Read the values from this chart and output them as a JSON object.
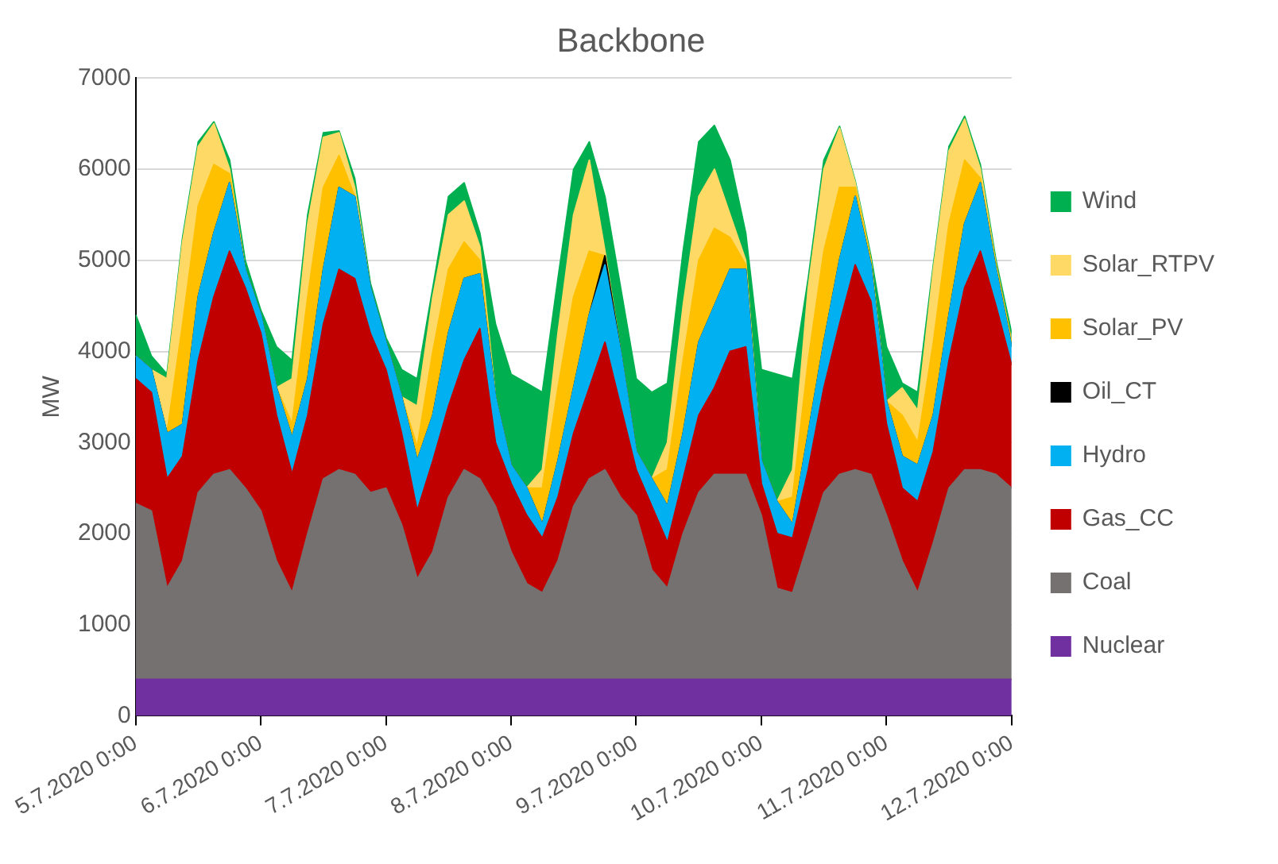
{
  "chart_data": {
    "type": "area",
    "title": "Backbone",
    "ylabel": "MW",
    "stacked": true,
    "grid": "y",
    "legend": "right",
    "x": [
      "2020-07-05T00:00",
      "2020-07-05T03:00",
      "2020-07-05T06:00",
      "2020-07-05T09:00",
      "2020-07-05T12:00",
      "2020-07-05T15:00",
      "2020-07-05T18:00",
      "2020-07-05T21:00",
      "2020-07-06T00:00",
      "2020-07-06T03:00",
      "2020-07-06T06:00",
      "2020-07-06T09:00",
      "2020-07-06T12:00",
      "2020-07-06T15:00",
      "2020-07-06T18:00",
      "2020-07-06T21:00",
      "2020-07-07T00:00",
      "2020-07-07T03:00",
      "2020-07-07T06:00",
      "2020-07-07T09:00",
      "2020-07-07T12:00",
      "2020-07-07T15:00",
      "2020-07-07T18:00",
      "2020-07-07T21:00",
      "2020-07-08T00:00",
      "2020-07-08T03:00",
      "2020-07-08T06:00",
      "2020-07-08T09:00",
      "2020-07-08T12:00",
      "2020-07-08T15:00",
      "2020-07-08T18:00",
      "2020-07-08T21:00",
      "2020-07-09T00:00",
      "2020-07-09T03:00",
      "2020-07-09T06:00",
      "2020-07-09T09:00",
      "2020-07-09T12:00",
      "2020-07-09T15:00",
      "2020-07-09T18:00",
      "2020-07-09T21:00",
      "2020-07-10T00:00",
      "2020-07-10T03:00",
      "2020-07-10T06:00",
      "2020-07-10T09:00",
      "2020-07-10T12:00",
      "2020-07-10T15:00",
      "2020-07-10T18:00",
      "2020-07-10T21:00",
      "2020-07-11T00:00",
      "2020-07-11T03:00",
      "2020-07-11T06:00",
      "2020-07-11T09:00",
      "2020-07-11T12:00",
      "2020-07-11T15:00",
      "2020-07-11T18:00",
      "2020-07-11T21:00",
      "2020-07-12T00:00"
    ],
    "xlim": [
      "2020-07-05T00:00",
      "2020-07-12T00:00"
    ],
    "xticks": [
      {
        "value": "2020-07-05T00:00",
        "label": "5.7.2020 0:00"
      },
      {
        "value": "2020-07-06T00:00",
        "label": "6.7.2020 0:00"
      },
      {
        "value": "2020-07-07T00:00",
        "label": "7.7.2020 0:00"
      },
      {
        "value": "2020-07-08T00:00",
        "label": "8.7.2020 0:00"
      },
      {
        "value": "2020-07-09T00:00",
        "label": "9.7.2020 0:00"
      },
      {
        "value": "2020-07-10T00:00",
        "label": "10.7.2020 0:00"
      },
      {
        "value": "2020-07-11T00:00",
        "label": "11.7.2020 0:00"
      },
      {
        "value": "2020-07-12T00:00",
        "label": "12.7.2020 0:00"
      }
    ],
    "ylim": [
      0,
      7000
    ],
    "yticks": [
      0,
      1000,
      2000,
      3000,
      4000,
      5000,
      6000,
      7000
    ],
    "series": [
      {
        "name": "Nuclear",
        "color": "#7030a0",
        "values": [
          400,
          400,
          400,
          400,
          400,
          400,
          400,
          400,
          400,
          400,
          400,
          400,
          400,
          400,
          400,
          400,
          400,
          400,
          400,
          400,
          400,
          400,
          400,
          400,
          400,
          400,
          400,
          400,
          400,
          400,
          400,
          400,
          400,
          400,
          400,
          400,
          400,
          400,
          400,
          400,
          400,
          400,
          400,
          400,
          400,
          400,
          400,
          400,
          400,
          400,
          400,
          400,
          400,
          400,
          400,
          400,
          400
        ]
      },
      {
        "name": "Coal",
        "color": "#767171",
        "values": [
          1930,
          1850,
          1000,
          1300,
          2050,
          2250,
          2300,
          2100,
          1850,
          1300,
          950,
          1600,
          2200,
          2300,
          2250,
          2050,
          2100,
          1700,
          1100,
          1400,
          2000,
          2300,
          2200,
          1900,
          1400,
          1050,
          950,
          1300,
          1900,
          2200,
          2300,
          2000,
          1800,
          1200,
          1000,
          1600,
          2050,
          2250,
          2250,
          2250,
          1800,
          1000,
          950,
          1500,
          2050,
          2250,
          2300,
          2250,
          1800,
          1300,
          950,
          1500,
          2100,
          2300,
          2300,
          2250,
          2100
        ]
      },
      {
        "name": "Gas_CC",
        "color": "#c00000",
        "values": [
          1370,
          1300,
          1200,
          1150,
          1450,
          1950,
          2400,
          2200,
          1950,
          1600,
          1300,
          1300,
          1700,
          2200,
          2150,
          1750,
          1300,
          1000,
          750,
          1000,
          1000,
          1200,
          1650,
          700,
          750,
          750,
          600,
          700,
          800,
          1000,
          1400,
          1000,
          500,
          700,
          500,
          600,
          850,
          950,
          1350,
          1400,
          350,
          600,
          600,
          800,
          1150,
          1650,
          2250,
          1900,
          1000,
          800,
          1000,
          1000,
          1400,
          2000,
          2400,
          1850,
          1350
        ]
      },
      {
        "name": "Hydro",
        "color": "#00b0f0",
        "values": [
          250,
          250,
          500,
          350,
          700,
          700,
          750,
          200,
          200,
          300,
          400,
          400,
          600,
          900,
          900,
          500,
          300,
          400,
          550,
          500,
          800,
          900,
          600,
          500,
          200,
          300,
          150,
          400,
          500,
          800,
          850,
          600,
          200,
          300,
          400,
          500,
          800,
          900,
          900,
          850,
          250,
          350,
          150,
          400,
          500,
          700,
          750,
          400,
          250,
          350,
          400,
          400,
          500,
          700,
          750,
          400,
          200
        ]
      },
      {
        "name": "Oil_CT",
        "color": "#000000",
        "values": [
          0,
          0,
          0,
          0,
          0,
          0,
          0,
          0,
          0,
          0,
          0,
          0,
          0,
          0,
          0,
          0,
          0,
          0,
          0,
          0,
          0,
          0,
          0,
          0,
          0,
          0,
          0,
          0,
          0,
          0,
          100,
          0,
          0,
          0,
          0,
          0,
          0,
          0,
          0,
          0,
          0,
          0,
          0,
          0,
          0,
          0,
          0,
          0,
          0,
          0,
          0,
          0,
          0,
          0,
          0,
          0,
          0
        ]
      },
      {
        "name": "Solar_PV",
        "color": "#ffc000",
        "values": [
          0,
          0,
          0,
          1100,
          1000,
          750,
          100,
          0,
          0,
          0,
          150,
          900,
          900,
          350,
          0,
          0,
          0,
          0,
          150,
          700,
          700,
          400,
          150,
          0,
          0,
          0,
          400,
          800,
          1000,
          700,
          0,
          0,
          0,
          0,
          400,
          800,
          900,
          850,
          350,
          50,
          0,
          0,
          300,
          800,
          1000,
          800,
          100,
          50,
          0,
          450,
          250,
          800,
          1000,
          700,
          50,
          50,
          50
        ]
      },
      {
        "name": "Solar_RTPV",
        "color": "#ffd966",
        "values": [
          0,
          0,
          600,
          900,
          650,
          450,
          50,
          0,
          0,
          0,
          500,
          800,
          550,
          250,
          100,
          0,
          0,
          0,
          450,
          600,
          600,
          450,
          150,
          0,
          0,
          0,
          200,
          600,
          900,
          1000,
          50,
          0,
          0,
          0,
          300,
          600,
          700,
          650,
          250,
          50,
          0,
          0,
          300,
          800,
          900,
          650,
          50,
          0,
          0,
          300,
          350,
          800,
          800,
          450,
          100,
          0,
          0
        ]
      },
      {
        "name": "Wind",
        "color": "#00b050",
        "values": [
          450,
          150,
          50,
          50,
          50,
          20,
          100,
          100,
          50,
          450,
          200,
          100,
          50,
          20,
          100,
          50,
          50,
          300,
          300,
          100,
          200,
          200,
          150,
          800,
          1000,
          1150,
          850,
          600,
          500,
          200,
          600,
          700,
          800,
          950,
          650,
          600,
          600,
          480,
          600,
          300,
          1000,
          1400,
          1000,
          100,
          100,
          20,
          20,
          50,
          600,
          50,
          200,
          50,
          50,
          30,
          50,
          50,
          100
        ]
      }
    ]
  }
}
